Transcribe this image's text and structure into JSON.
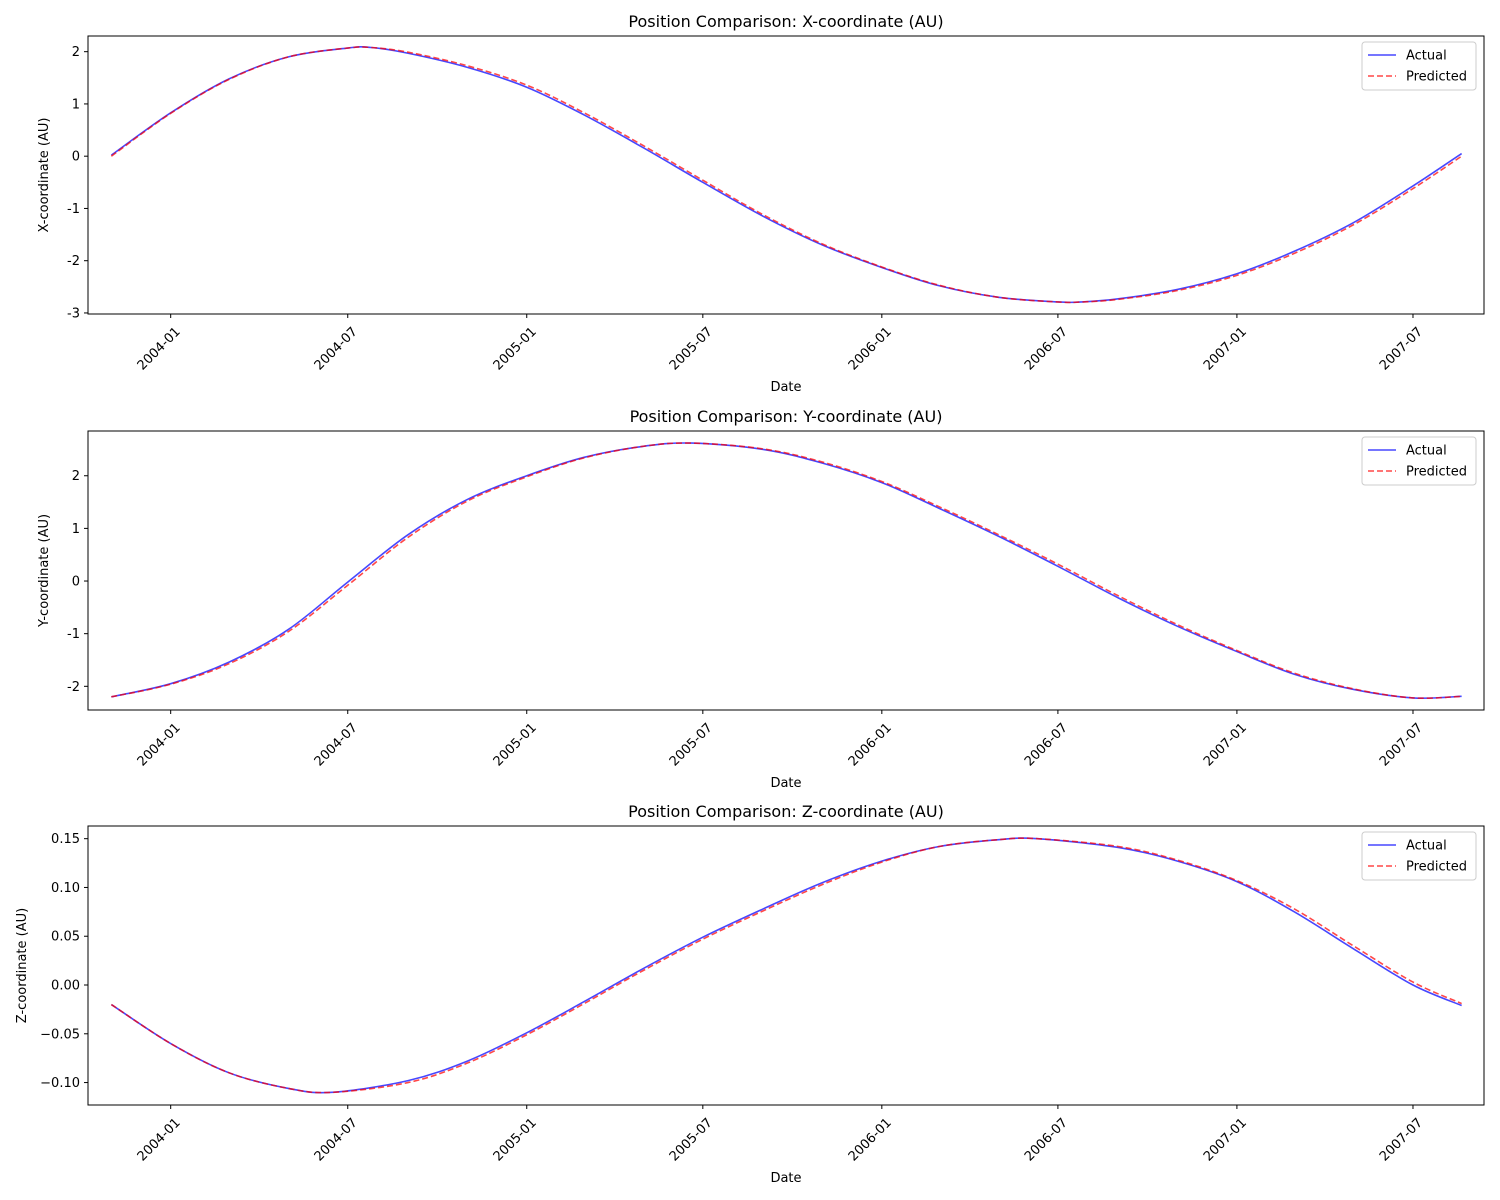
{
  "chart_data": [
    {
      "type": "line",
      "title": "Position Comparison: X-coordinate (AU)",
      "xlabel": "Date",
      "ylabel": "X-coordinate (AU)",
      "x_type": "date",
      "xlim": [
        "2003-10-08",
        "2007-09-12"
      ],
      "ylim": [
        -3.02,
        2.3
      ],
      "xticks": [
        "2004-01",
        "2004-07",
        "2005-01",
        "2005-07",
        "2006-01",
        "2006-07",
        "2007-01",
        "2007-07"
      ],
      "yticks": [
        -3,
        -2,
        -1,
        0,
        1,
        2
      ],
      "legend": {
        "position": "top-right",
        "entries": [
          "Actual",
          "Predicted"
        ]
      },
      "grid": false,
      "x": [
        "2003-11-01",
        "2004-01-01",
        "2004-03-01",
        "2004-05-01",
        "2004-07-01",
        "2004-07-25",
        "2004-09-01",
        "2004-11-01",
        "2005-01-01",
        "2005-03-01",
        "2005-05-01",
        "2005-07-01",
        "2005-09-01",
        "2005-11-01",
        "2006-01-01",
        "2006-03-01",
        "2006-05-01",
        "2006-07-01",
        "2006-07-25",
        "2006-09-01",
        "2006-11-01",
        "2007-01-01",
        "2007-03-01",
        "2007-05-01",
        "2007-07-01",
        "2007-08-20"
      ],
      "series": [
        {
          "name": "Actual",
          "color": "#0000ff",
          "style": "solid",
          "values": [
            0.02,
            0.83,
            1.48,
            1.9,
            2.07,
            2.08,
            1.97,
            1.7,
            1.32,
            0.79,
            0.16,
            -0.5,
            -1.15,
            -1.7,
            -2.13,
            -2.48,
            -2.7,
            -2.79,
            -2.79,
            -2.73,
            -2.55,
            -2.25,
            -1.82,
            -1.27,
            -0.57,
            0.05
          ]
        },
        {
          "name": "Predicted",
          "color": "#ff0000",
          "style": "dashed",
          "values": [
            0.0,
            0.82,
            1.47,
            1.9,
            2.07,
            2.08,
            1.99,
            1.73,
            1.36,
            0.83,
            0.2,
            -0.46,
            -1.12,
            -1.68,
            -2.12,
            -2.47,
            -2.7,
            -2.79,
            -2.79,
            -2.74,
            -2.57,
            -2.28,
            -1.86,
            -1.31,
            -0.62,
            0.0
          ]
        }
      ]
    },
    {
      "type": "line",
      "title": "Position Comparison: Y-coordinate (AU)",
      "xlabel": "Date",
      "ylabel": "Y-coordinate (AU)",
      "x_type": "date",
      "xlim": [
        "2003-10-08",
        "2007-09-12"
      ],
      "ylim": [
        -2.45,
        2.85
      ],
      "xticks": [
        "2004-01",
        "2004-07",
        "2005-01",
        "2005-07",
        "2006-01",
        "2006-07",
        "2007-01",
        "2007-07"
      ],
      "yticks": [
        -2,
        -1,
        0,
        1,
        2
      ],
      "legend": {
        "position": "top-right",
        "entries": [
          "Actual",
          "Predicted"
        ]
      },
      "grid": false,
      "x": [
        "2003-11-01",
        "2004-01-01",
        "2004-03-01",
        "2004-05-01",
        "2004-07-01",
        "2004-09-01",
        "2004-11-01",
        "2005-01-01",
        "2005-03-01",
        "2005-05-01",
        "2005-06-20",
        "2005-09-01",
        "2005-11-01",
        "2006-01-01",
        "2006-03-01",
        "2006-05-01",
        "2006-07-01",
        "2006-09-01",
        "2006-11-01",
        "2007-01-01",
        "2007-03-01",
        "2007-05-01",
        "2007-07-01",
        "2007-08-20"
      ],
      "series": [
        {
          "name": "Actual",
          "color": "#0000ff",
          "style": "solid",
          "values": [
            -2.2,
            -1.95,
            -1.54,
            -0.92,
            -0.02,
            0.88,
            1.55,
            2.0,
            2.35,
            2.56,
            2.62,
            2.5,
            2.24,
            1.87,
            1.38,
            0.85,
            0.28,
            -0.32,
            -0.86,
            -1.34,
            -1.77,
            -2.06,
            -2.22,
            -2.19
          ]
        },
        {
          "name": "Predicted",
          "color": "#ff0000",
          "style": "dashed",
          "values": [
            -2.2,
            -1.96,
            -1.57,
            -0.96,
            -0.08,
            0.83,
            1.52,
            1.98,
            2.34,
            2.56,
            2.62,
            2.51,
            2.26,
            1.89,
            1.41,
            0.88,
            0.32,
            -0.28,
            -0.83,
            -1.32,
            -1.75,
            -2.05,
            -2.22,
            -2.19
          ]
        }
      ]
    },
    {
      "type": "line",
      "title": "Position Comparison: Z-coordinate (AU)",
      "xlabel": "Date",
      "ylabel": "Z-coordinate (AU)",
      "x_type": "date",
      "xlim": [
        "2003-10-08",
        "2007-09-12"
      ],
      "ylim": [
        -0.123,
        0.163
      ],
      "xticks": [
        "2004-01",
        "2004-07",
        "2005-01",
        "2005-07",
        "2006-01",
        "2006-07",
        "2007-01",
        "2007-07"
      ],
      "yticks": [
        -0.1,
        -0.05,
        0.0,
        0.05,
        0.1,
        0.15
      ],
      "ytick_labels": [
        "−0.10",
        "−0.05",
        "0.00",
        "0.05",
        "0.10",
        "0.15"
      ],
      "legend": {
        "position": "top-right",
        "entries": [
          "Actual",
          "Predicted"
        ]
      },
      "grid": false,
      "x": [
        "2003-11-01",
        "2004-01-01",
        "2004-03-01",
        "2004-05-01",
        "2004-06-15",
        "2004-09-01",
        "2004-11-01",
        "2005-01-01",
        "2005-03-01",
        "2005-05-01",
        "2005-07-01",
        "2005-09-01",
        "2005-11-01",
        "2006-01-01",
        "2006-03-01",
        "2006-05-01",
        "2006-06-10",
        "2006-09-01",
        "2006-11-01",
        "2007-01-01",
        "2007-03-01",
        "2007-05-01",
        "2007-07-01",
        "2007-08-20"
      ],
      "series": [
        {
          "name": "Actual",
          "color": "#0000ff",
          "style": "solid",
          "values": [
            -0.02,
            -0.06,
            -0.09,
            -0.106,
            -0.11,
            -0.098,
            -0.078,
            -0.049,
            -0.017,
            0.017,
            0.049,
            0.078,
            0.105,
            0.127,
            0.142,
            0.149,
            0.15,
            0.141,
            0.127,
            0.106,
            0.075,
            0.037,
            0.0,
            -0.021
          ]
        },
        {
          "name": "Predicted",
          "color": "#ff0000",
          "style": "dashed",
          "values": [
            -0.02,
            -0.06,
            -0.09,
            -0.106,
            -0.11,
            -0.1,
            -0.08,
            -0.051,
            -0.019,
            0.015,
            0.047,
            0.076,
            0.103,
            0.126,
            0.142,
            0.149,
            0.15,
            0.142,
            0.128,
            0.107,
            0.078,
            0.04,
            0.003,
            -0.019
          ]
        }
      ]
    }
  ]
}
